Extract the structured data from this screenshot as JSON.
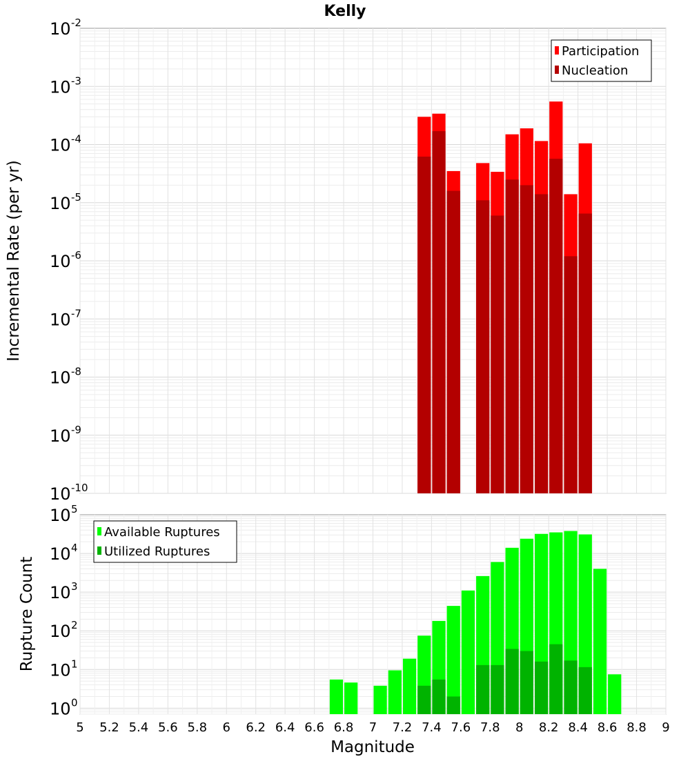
{
  "chart_data": [
    {
      "type": "bar",
      "title": "Kelly",
      "xlabel": "Magnitude",
      "ylabel": "Incremental Rate (per yr)",
      "yscale": "log",
      "xlim": [
        5,
        9
      ],
      "ylim": [
        1e-10,
        0.01
      ],
      "bin_width": 0.1,
      "y_ticks": [
        {
          "base": "10",
          "exp": "-2",
          "value": 0.01
        },
        {
          "base": "10",
          "exp": "-3",
          "value": 0.001
        },
        {
          "base": "10",
          "exp": "-4",
          "value": 0.0001
        },
        {
          "base": "10",
          "exp": "-5",
          "value": 1e-05
        },
        {
          "base": "10",
          "exp": "-6",
          "value": 1e-06
        },
        {
          "base": "10",
          "exp": "-7",
          "value": 1e-07
        },
        {
          "base": "10",
          "exp": "-8",
          "value": 1e-08
        },
        {
          "base": "10",
          "exp": "-9",
          "value": 1e-09
        },
        {
          "base": "10",
          "exp": "-10",
          "value": 1e-10
        }
      ],
      "legend": {
        "position": "top-right",
        "entries": [
          "Participation",
          "Nucleation"
        ]
      },
      "grid": true,
      "series": [
        {
          "name": "Participation",
          "color": "#ff0000",
          "x": [
            7.35,
            7.45,
            7.55,
            7.75,
            7.85,
            7.95,
            8.05,
            8.15,
            8.25,
            8.35,
            8.45
          ],
          "values": [
            0.0003,
            0.00034,
            3.5e-05,
            4.8e-05,
            3.4e-05,
            0.00015,
            0.00019,
            0.000115,
            0.00055,
            1.4e-05,
            0.000105
          ]
        },
        {
          "name": "Nucleation",
          "color": "#b30000",
          "x": [
            7.35,
            7.45,
            7.55,
            7.75,
            7.85,
            7.95,
            8.05,
            8.15,
            8.25,
            8.35,
            8.45
          ],
          "values": [
            6.2e-05,
            0.00017,
            1.6e-05,
            1.1e-05,
            6e-06,
            2.5e-05,
            2e-05,
            1.4e-05,
            5.7e-05,
            1.2e-06,
            6.5e-06
          ]
        }
      ]
    },
    {
      "type": "bar",
      "title": "",
      "xlabel": "Magnitude",
      "ylabel": "Rupture Count",
      "yscale": "log",
      "xlim": [
        5,
        9
      ],
      "ylim": [
        0.7,
        100000
      ],
      "bin_width": 0.1,
      "x_ticks": [
        "5",
        "5.2",
        "5.4",
        "5.6",
        "5.8",
        "6",
        "6.2",
        "6.4",
        "6.6",
        "6.8",
        "7",
        "7.2",
        "7.4",
        "7.6",
        "7.8",
        "8",
        "8.2",
        "8.4",
        "8.6",
        "8.8",
        "9"
      ],
      "y_ticks": [
        {
          "base": "10",
          "exp": "5",
          "value": 100000
        },
        {
          "base": "10",
          "exp": "4",
          "value": 10000
        },
        {
          "base": "10",
          "exp": "3",
          "value": 1000
        },
        {
          "base": "10",
          "exp": "2",
          "value": 100
        },
        {
          "base": "10",
          "exp": "1",
          "value": 10
        },
        {
          "base": "10",
          "exp": "0",
          "value": 1
        }
      ],
      "legend": {
        "position": "top-left",
        "entries": [
          "Available Ruptures",
          "Utilized Ruptures"
        ]
      },
      "grid": true,
      "series": [
        {
          "name": "Available Ruptures",
          "color": "#00ff00",
          "x": [
            6.75,
            6.85,
            7.05,
            7.15,
            7.25,
            7.35,
            7.45,
            7.55,
            7.65,
            7.75,
            7.85,
            7.95,
            8.05,
            8.15,
            8.25,
            8.35,
            8.45,
            8.55,
            8.65
          ],
          "values": [
            5.5,
            4.6,
            3.8,
            9.5,
            19,
            75,
            180,
            440,
            1100,
            2600,
            6000,
            14000,
            24000,
            32000,
            35000,
            38000,
            31000,
            4000,
            7.5
          ]
        },
        {
          "name": "Utilized Ruptures",
          "color": "#00b300",
          "x": [
            7.35,
            7.45,
            7.55,
            7.75,
            7.85,
            7.95,
            8.05,
            8.15,
            8.25,
            8.35,
            8.45
          ],
          "values": [
            3.8,
            5.5,
            2,
            13,
            13,
            34,
            30,
            16,
            45,
            17,
            11.5
          ]
        }
      ]
    }
  ]
}
